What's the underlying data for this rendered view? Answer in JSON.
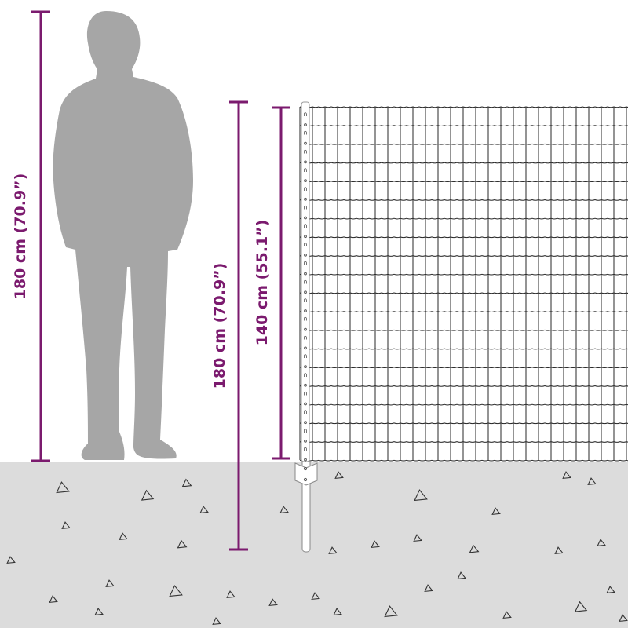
{
  "colors": {
    "accent": "#7b1a6e",
    "ground": "#dcdcdc",
    "silhouette": "#a6a6a6",
    "mesh": "#2a2a2a"
  },
  "measurements": {
    "person_height": "180 cm (70.9”)",
    "post_length": "180 cm (70.9”)",
    "fence_height": "140 cm (55.1”)"
  },
  "icons": [
    "person-silhouette",
    "fence-post",
    "mesh-fence",
    "ground-stones"
  ]
}
